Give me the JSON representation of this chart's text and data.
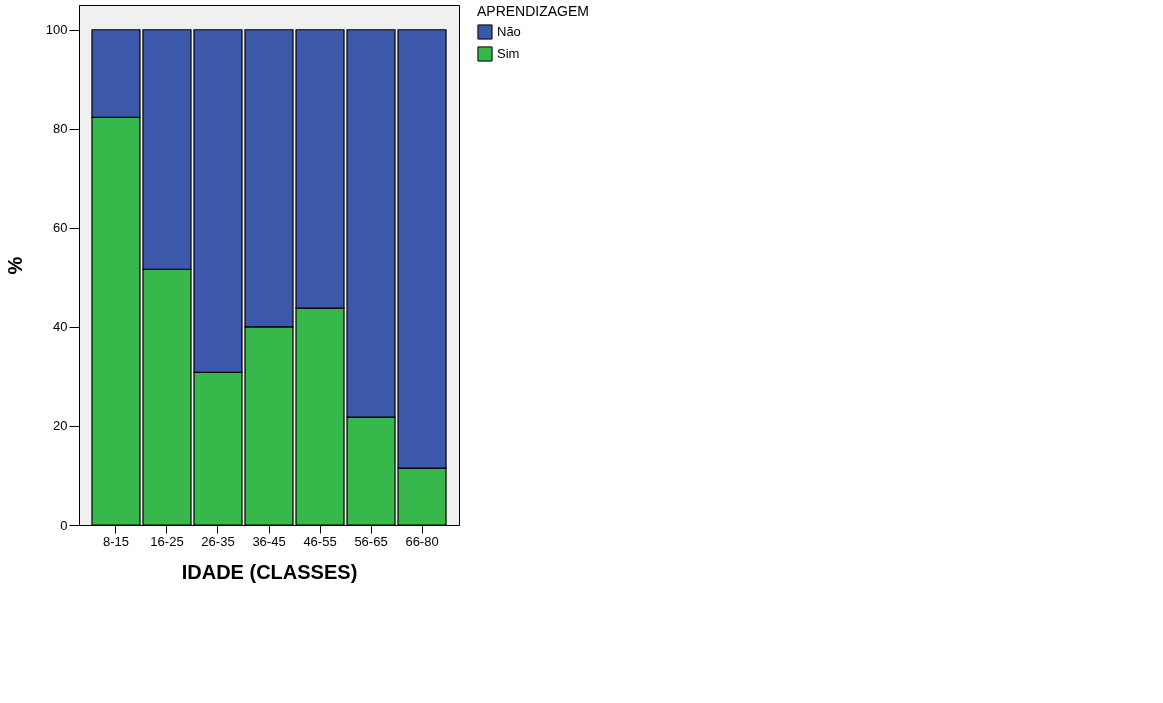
{
  "chart_data": {
    "type": "bar",
    "stacked": true,
    "xlabel": "IDADE (CLASSES)",
    "ylabel": "%",
    "legend_title": "APRENDIZAGEM",
    "categories": [
      "8-15",
      "16-25",
      "26-35",
      "36-45",
      "46-55",
      "56-65",
      "66-80"
    ],
    "series": [
      {
        "name": "Sim",
        "color": "#36b94a",
        "values": [
          82.3,
          51.6,
          30.8,
          40.0,
          43.8,
          21.8,
          11.5
        ]
      },
      {
        "name": "Não",
        "color": "#3c58aa",
        "values": [
          17.7,
          48.4,
          69.2,
          60.0,
          56.2,
          78.2,
          88.5
        ]
      }
    ],
    "ylim": [
      0,
      105
    ],
    "yticks": [
      0,
      20,
      40,
      60,
      80,
      100
    ],
    "grid": false,
    "legend": "top right"
  }
}
